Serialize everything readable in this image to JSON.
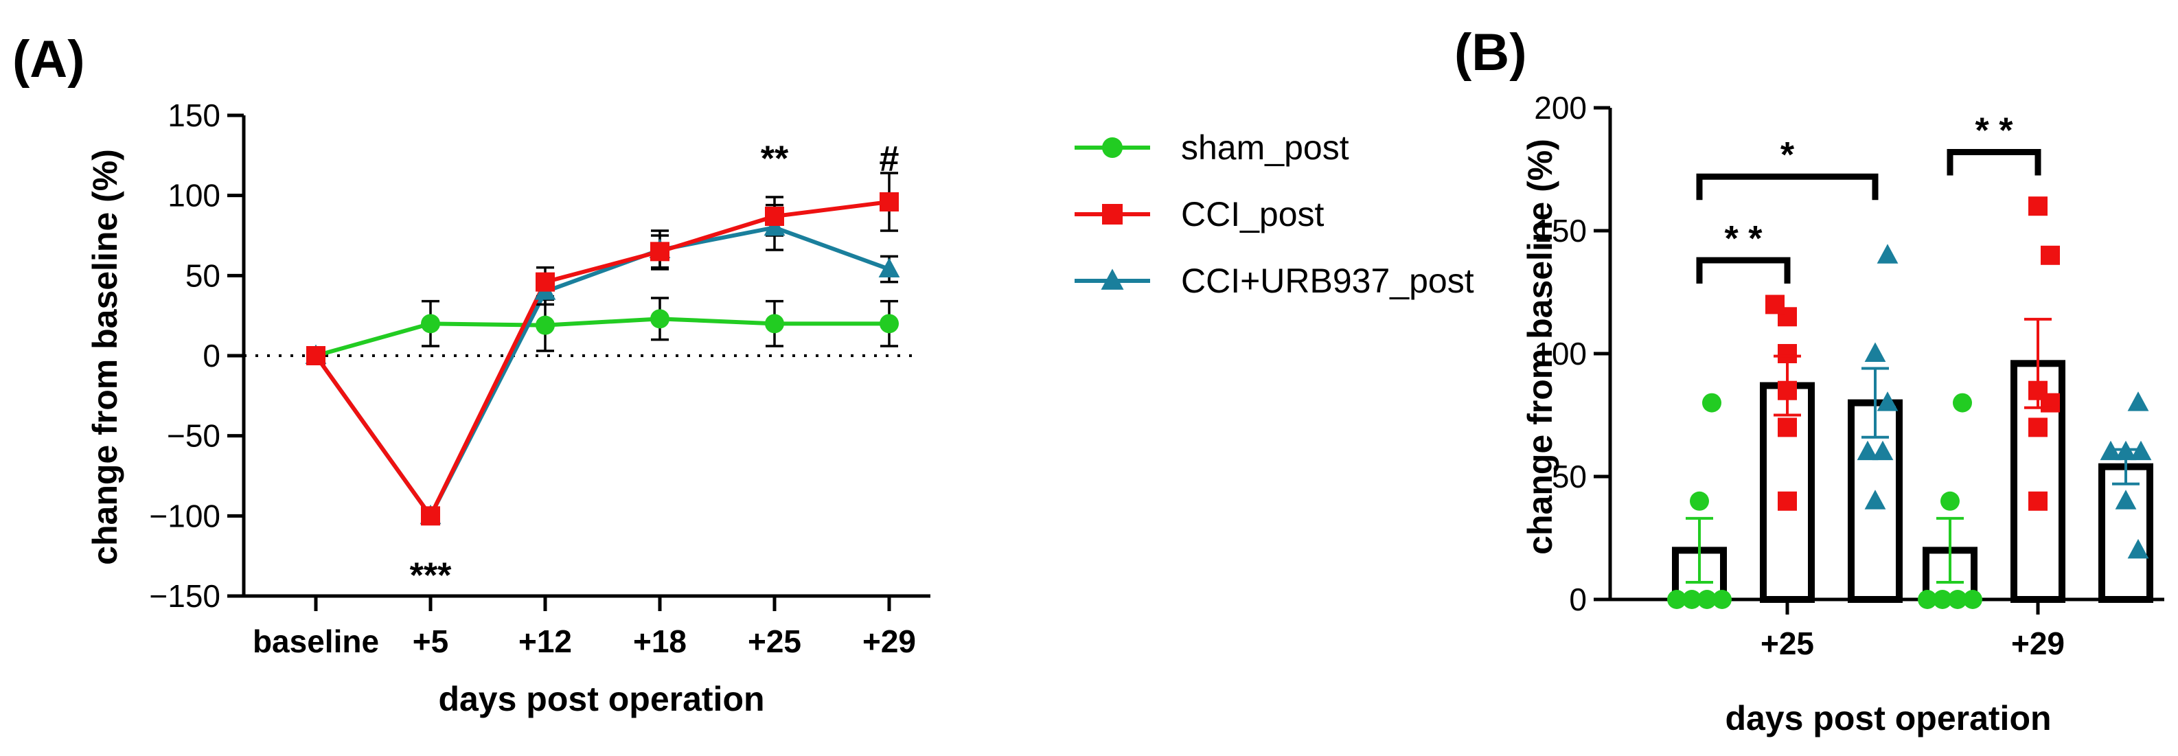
{
  "chart_data": [
    {
      "panel": "(A)",
      "type": "line",
      "categories": [
        "baseline",
        "+5",
        "+12",
        "+18",
        "+25",
        "+29"
      ],
      "ylabel": "change from baseline (%)",
      "xlabel": "days post operation",
      "ylim": [
        -150,
        150
      ],
      "yticks": [
        -150,
        -100,
        -50,
        0,
        50,
        100,
        150
      ],
      "ytick_labels": [
        "−150",
        "−100",
        "−50",
        "0",
        "50",
        "100",
        "150"
      ],
      "series": [
        {
          "name": "sham_post",
          "color": "#22cc22",
          "marker": "circle",
          "values": [
            0,
            20,
            19,
            23,
            20,
            20
          ],
          "errors": [
            0,
            14,
            16,
            13,
            14,
            14
          ]
        },
        {
          "name": "CCI_post",
          "color": "#ee1111",
          "marker": "square",
          "values": [
            0,
            -100,
            46,
            65,
            87,
            96
          ],
          "errors": [
            0,
            0,
            9,
            10,
            12,
            18
          ]
        },
        {
          "name": "CCI+URB937_post",
          "color": "#1a7f9c",
          "marker": "triangle",
          "values": [
            0,
            -100,
            40,
            66,
            80,
            54
          ],
          "errors": [
            0,
            0,
            8,
            12,
            14,
            8
          ]
        }
      ],
      "annotations": [
        {
          "text": "***",
          "category": "+5",
          "y": -130
        },
        {
          "text": "**",
          "category": "+25",
          "y": 130
        },
        {
          "text": "#",
          "category": "+29",
          "y": 130
        }
      ]
    },
    {
      "panel": "(B)",
      "type": "bar",
      "categories": [
        "+25",
        "+29"
      ],
      "ylabel": "change from baseline (%)",
      "xlabel": "days post operation",
      "ylim": [
        0,
        200
      ],
      "yticks": [
        0,
        50,
        100,
        150,
        200
      ],
      "ytick_labels": [
        "0",
        "50",
        "100",
        "150",
        "200"
      ],
      "series": [
        {
          "name": "sham_post",
          "color": "#22cc22",
          "marker": "circle",
          "values": [
            20,
            20
          ],
          "errors": [
            13,
            13
          ],
          "points": [
            [
              0,
              0,
              0,
              0,
              40,
              80
            ],
            [
              0,
              0,
              0,
              0,
              40,
              80
            ]
          ]
        },
        {
          "name": "CCI_post",
          "color": "#ee1111",
          "marker": "square",
          "values": [
            87,
            96
          ],
          "errors": [
            12,
            18
          ],
          "points": [
            [
              40,
              70,
              85,
              100,
              115,
              120
            ],
            [
              40,
              70,
              80,
              85,
              140,
              160
            ]
          ]
        },
        {
          "name": "CCI+URB937_post",
          "color": "#1a7f9c",
          "marker": "triangle",
          "values": [
            80,
            54
          ],
          "errors": [
            14,
            7
          ],
          "points": [
            [
              40,
              60,
              60,
              80,
              100,
              140
            ],
            [
              20,
              40,
              60,
              60,
              60,
              80
            ]
          ]
        }
      ],
      "annotations": [
        {
          "text": "**",
          "category": "+25",
          "from": 0,
          "to": 1,
          "y": 138
        },
        {
          "text": "*",
          "category": "+25",
          "from": 0,
          "to": 2,
          "y": 172
        },
        {
          "text": "**",
          "category": "+29",
          "from": 0,
          "to": 1,
          "y": 182
        }
      ]
    }
  ],
  "legend": [
    {
      "label": "sham_post",
      "color": "#22cc22",
      "marker": "circle"
    },
    {
      "label": "CCI_post",
      "color": "#ee1111",
      "marker": "square"
    },
    {
      "label": "CCI+URB937_post",
      "color": "#1a7f9c",
      "marker": "triangle"
    }
  ]
}
